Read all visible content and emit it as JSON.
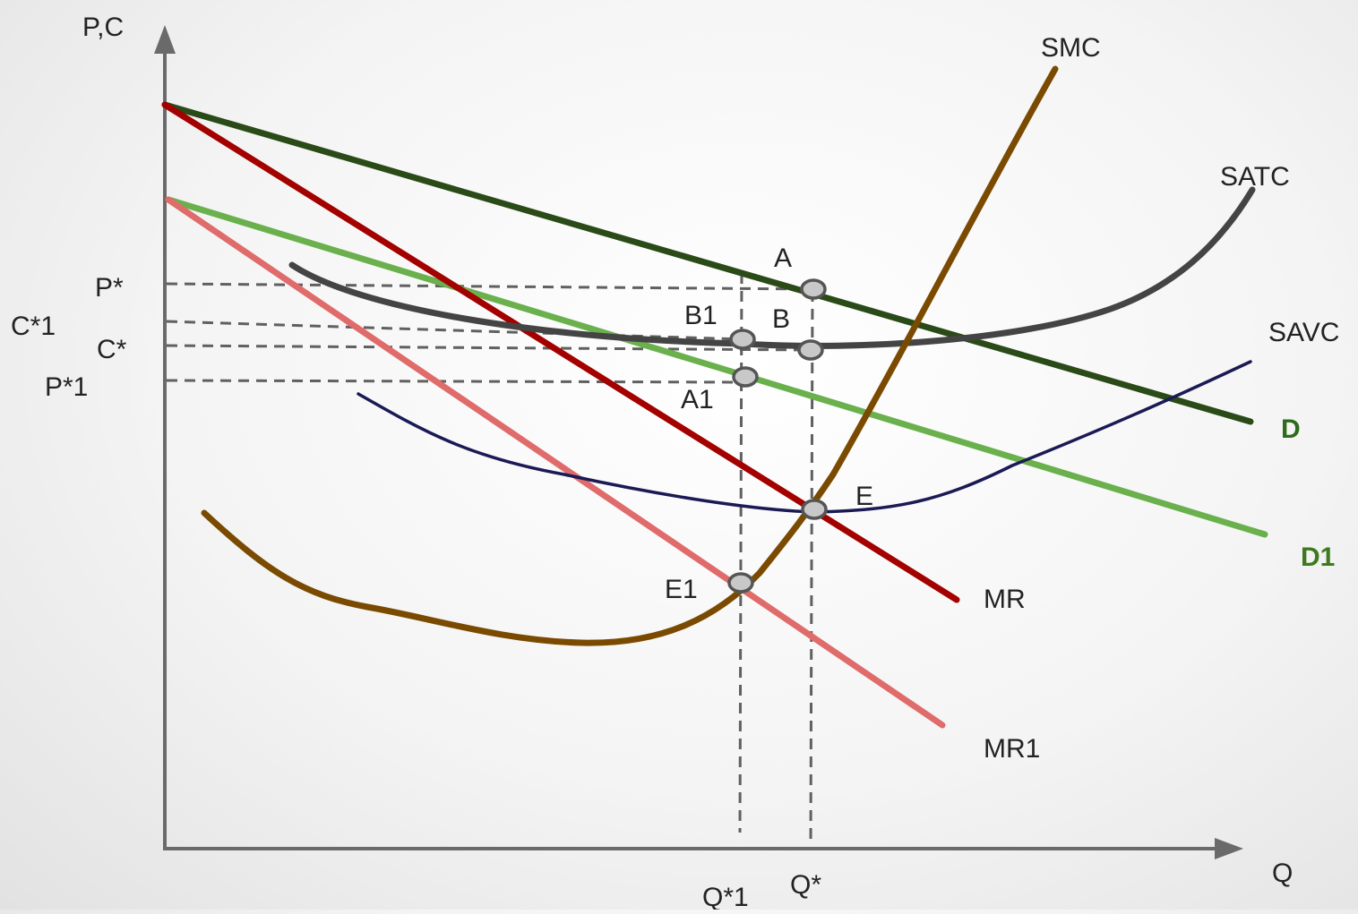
{
  "axes": {
    "y_label": "P,C",
    "x_label": "Q"
  },
  "curves": {
    "smc": {
      "label": "SMC",
      "color": "#7a4a00"
    },
    "satc": {
      "label": "SATC",
      "color": "#444444"
    },
    "savc": {
      "label": "SAVC",
      "color": "#1a1a55"
    },
    "d": {
      "label": "D",
      "color": "#2a4a18",
      "label_color": "#2e6b1a"
    },
    "d1": {
      "label": "D1",
      "color": "#6ab04c",
      "label_color": "#3d7a1f"
    },
    "mr": {
      "label": "MR",
      "color": "#a30000"
    },
    "mr1": {
      "label": "MR1",
      "color": "#e06b6b",
      "label_color": "#c00000"
    }
  },
  "price_levels": {
    "p_star": "P*",
    "c1_star": "C*1",
    "c_star": "C*",
    "p1_star": "P*1"
  },
  "quantity_levels": {
    "q1_star": "Q*1",
    "q_star": "Q*"
  },
  "points": {
    "a": "A",
    "b": "B",
    "b1": "B1",
    "a1": "A1",
    "e": "E",
    "e1": "E1"
  }
}
